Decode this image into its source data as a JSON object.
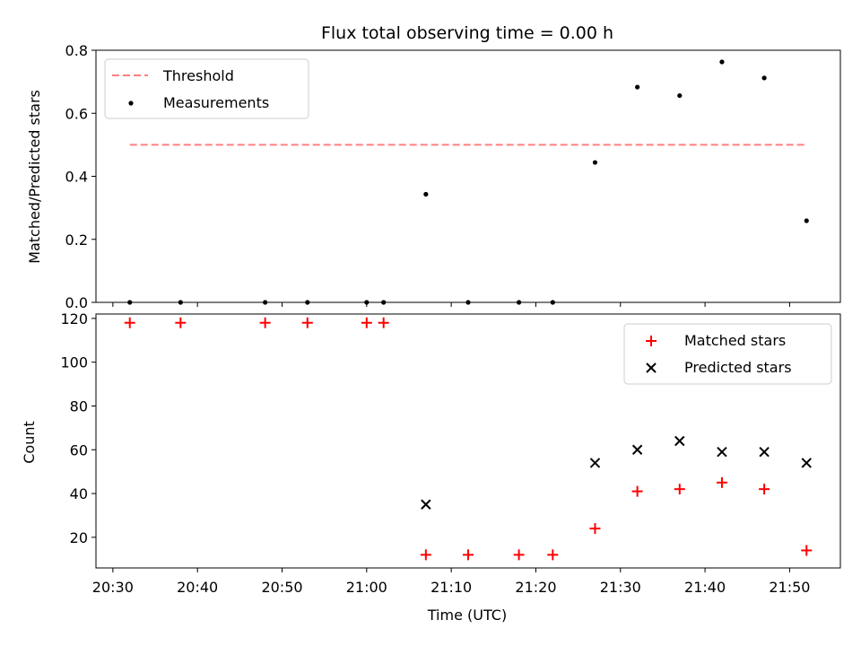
{
  "chart_data": [
    {
      "type": "scatter",
      "title": "Flux total observing time = 0.00 h",
      "xlabel": "",
      "ylabel": "Matched/Predicted stars",
      "ylim": [
        0,
        0.8
      ],
      "yticks": [
        "0.0",
        "0.2",
        "0.4",
        "0.6",
        "0.8"
      ],
      "legend_position": "top-left",
      "threshold": {
        "name": "Threshold",
        "value": 0.5,
        "x_start": "20:32",
        "x_end": "21:52",
        "color": "#ff7f7f"
      },
      "series": [
        {
          "name": "Measurements",
          "color": "#000000",
          "x": [
            "20:32",
            "20:38",
            "20:48",
            "20:53",
            "21:00",
            "21:02",
            "21:07",
            "21:12",
            "21:18",
            "21:22",
            "21:27",
            "21:32",
            "21:37",
            "21:42",
            "21:47",
            "21:52"
          ],
          "y": [
            0,
            0,
            0,
            0,
            0,
            0,
            0.343,
            0,
            0,
            0,
            0.444,
            0.683,
            0.656,
            0.763,
            0.712,
            0.259
          ]
        }
      ]
    },
    {
      "type": "scatter",
      "title": "",
      "xlabel": "Time (UTC)",
      "ylabel": "Count",
      "ylim": [
        6,
        122
      ],
      "yticks": [
        "20",
        "40",
        "60",
        "80",
        "100",
        "120"
      ],
      "xlim": [
        "20:28",
        "21:56"
      ],
      "xticks": [
        "20:30",
        "20:40",
        "20:50",
        "21:00",
        "21:10",
        "21:20",
        "21:30",
        "21:40",
        "21:50"
      ],
      "legend_position": "top-right",
      "series": [
        {
          "name": "Matched stars",
          "marker": "plus",
          "color": "#ff0000",
          "x": [
            "20:32",
            "20:38",
            "20:48",
            "20:53",
            "21:00",
            "21:02",
            "21:07",
            "21:12",
            "21:18",
            "21:22",
            "21:27",
            "21:32",
            "21:37",
            "21:42",
            "21:47",
            "21:52"
          ],
          "y": [
            118,
            118,
            118,
            118,
            118,
            118,
            12,
            12,
            12,
            12,
            24,
            41,
            42,
            45,
            42,
            14
          ]
        },
        {
          "name": "Predicted stars",
          "marker": "x",
          "color": "#000000",
          "x": [
            "21:07",
            "21:27",
            "21:32",
            "21:37",
            "21:42",
            "21:47",
            "21:52"
          ],
          "y": [
            35,
            54,
            60,
            64,
            59,
            59,
            54
          ]
        }
      ]
    }
  ]
}
